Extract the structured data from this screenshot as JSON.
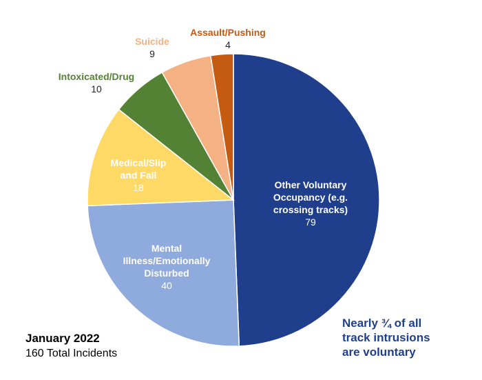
{
  "chart_data": {
    "type": "pie",
    "slices": [
      {
        "label": [
          "Other Voluntary",
          "Occupancy (e.g.",
          "crossing tracks)"
        ],
        "value": 79,
        "value_label": "79",
        "color": "#1f3f8c"
      },
      {
        "label": [
          "Mental",
          "Illness/Emotionally",
          "Disturbed"
        ],
        "value": 40,
        "value_label": "40",
        "color": "#8faadc"
      },
      {
        "label": [
          "Medical/Slip",
          "and Fall"
        ],
        "value": 18,
        "value_label": "18",
        "color": "#ffd966"
      },
      {
        "label": [
          "Intoxicated/Drug"
        ],
        "value": 10,
        "value_label": "10",
        "color": "#548235"
      },
      {
        "label": [
          "Suicide"
        ],
        "value": 9,
        "value_label": "9",
        "color": "#f4b183"
      },
      {
        "label": [
          "Assault/Pushing"
        ],
        "value": 4,
        "value_label": "4",
        "color": "#c55a11"
      }
    ],
    "start_angle_deg": 0,
    "direction": "clockwise",
    "total": 160
  },
  "footer": {
    "period": "January 2022",
    "total_text": "160 Total Incidents"
  },
  "note": {
    "lines": [
      "Nearly ¾ of all",
      "track intrusions",
      "are voluntary"
    ]
  }
}
